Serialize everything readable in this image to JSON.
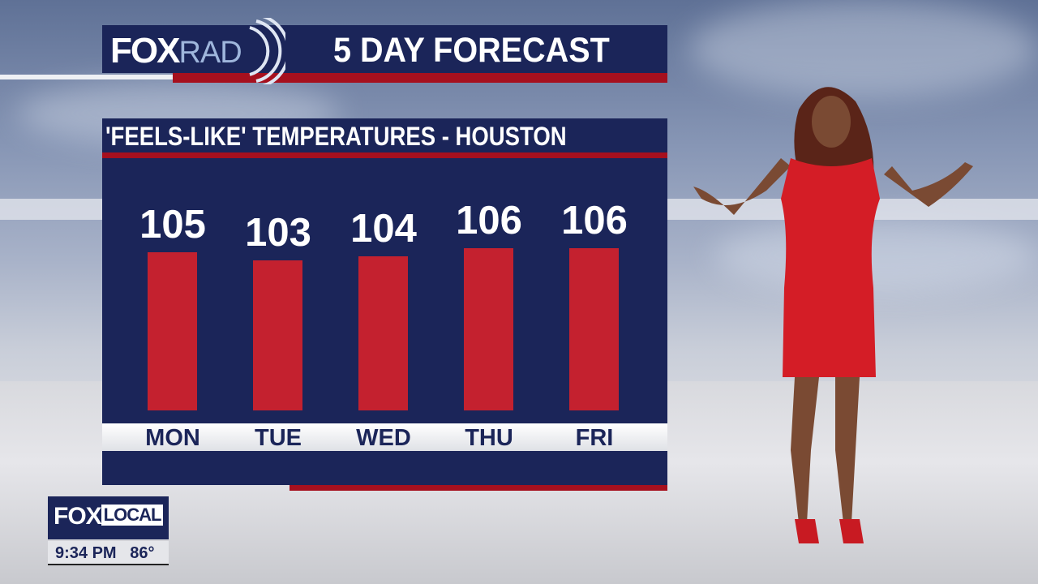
{
  "header": {
    "logo": "FOX",
    "logo_sub": "RAD",
    "title": "5 DAY FORECAST"
  },
  "panel": {
    "subtitle": "'FEELS-LIKE' TEMPERATURES - HOUSTON"
  },
  "chart_data": {
    "type": "bar",
    "title": "'FEELS-LIKE' TEMPERATURES - HOUSTON",
    "categories": [
      "MON",
      "TUE",
      "WED",
      "THU",
      "FRI"
    ],
    "values": [
      105,
      103,
      104,
      106,
      106
    ],
    "data_labels": [
      "105",
      "103",
      "104",
      "106",
      "106"
    ],
    "bar_color": "#c4212f",
    "background_color": "#1b2559",
    "grid": false
  },
  "bug": {
    "logo": "FOX",
    "logo_sub": "LOCAL",
    "time": "9:34 PM",
    "temp": "86°"
  },
  "colors": {
    "navy": "#1b2559",
    "red": "#a6101e"
  }
}
